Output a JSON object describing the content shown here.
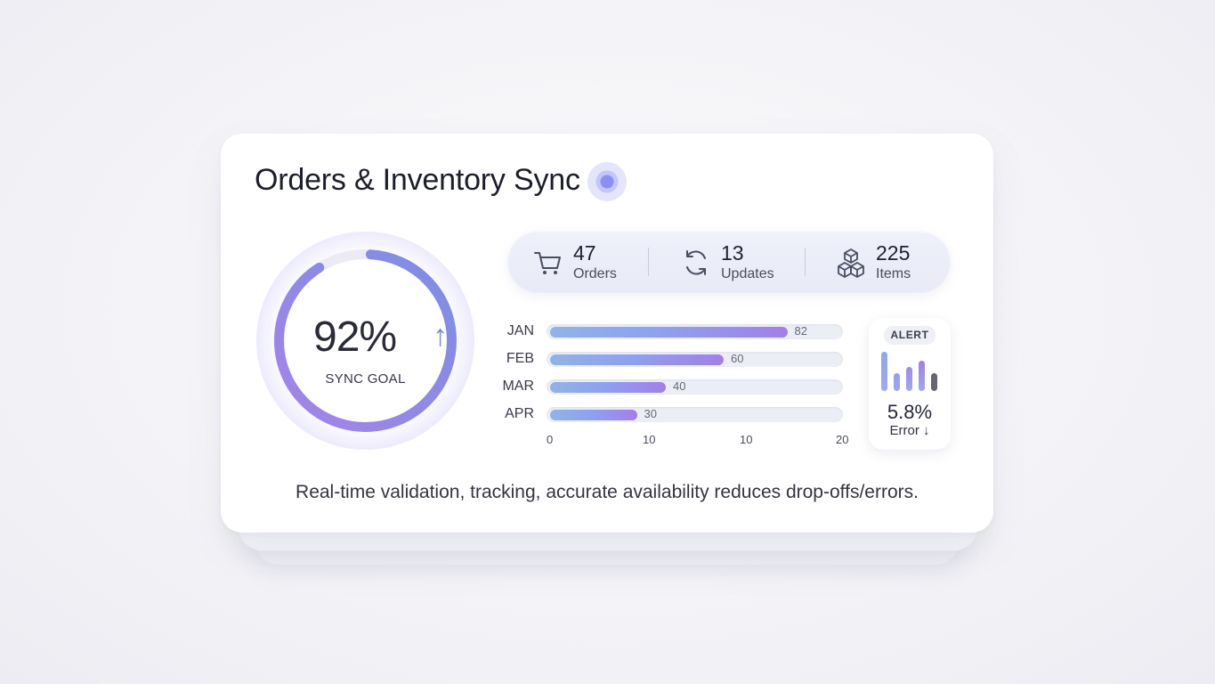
{
  "card": {
    "title": "Orders & Inventory Sync",
    "footer": "Real-time validation, tracking, accurate availability reduces drop-offs/errors."
  },
  "ring": {
    "value_text": "92%",
    "arrow": "↑",
    "label": "SYNC GOAL",
    "progress": 0.92
  },
  "stats": [
    {
      "icon": "cart-icon",
      "value": "47",
      "label": "Orders"
    },
    {
      "icon": "refresh-icon",
      "value": "13",
      "label": "Updates"
    },
    {
      "icon": "boxes-icon",
      "value": "225",
      "label": "Items"
    }
  ],
  "chart_data": {
    "type": "bar",
    "orientation": "horizontal",
    "categories": [
      "JAN",
      "FEB",
      "MAR",
      "APR"
    ],
    "values": [
      82,
      60,
      40,
      30
    ],
    "value_labels": [
      "82",
      "60",
      "40",
      "30"
    ],
    "x_tick_labels": [
      "0",
      "10",
      "10",
      "20"
    ],
    "xlim": [
      0,
      100
    ]
  },
  "alert": {
    "badge": "ALERT",
    "value": "5.8%",
    "label": "Error ↓",
    "mini_bars": [
      1.0,
      0.45,
      0.62,
      0.78,
      0.45
    ]
  },
  "colors": {
    "ring_start": "#9b7fe8",
    "ring_end": "#7e93e6",
    "bar_start": "#8fb4e6",
    "bar_end": "#a27fe8",
    "accent": "#8c8ff0"
  }
}
